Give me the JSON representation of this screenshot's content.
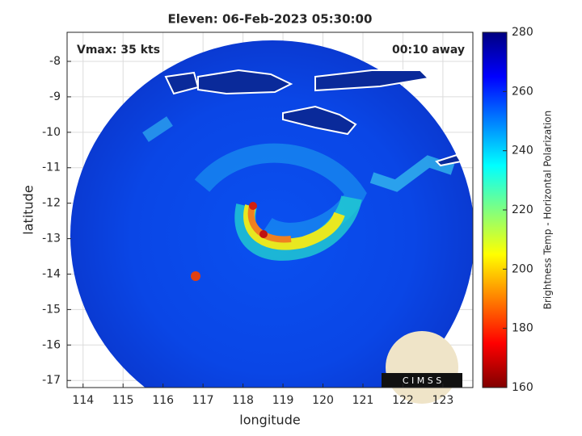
{
  "chart_data": {
    "type": "image",
    "title": "Eleven: 06-Feb-2023 05:30:00",
    "xlabel": "longitude",
    "ylabel": "latitude",
    "xlim": [
      113.6,
      123.75
    ],
    "xticks": [
      114,
      115,
      116,
      117,
      118,
      119,
      120,
      121,
      122,
      123
    ],
    "ylim": [
      -17.2,
      -7.18
    ],
    "yticks": [
      -17,
      -16,
      -15,
      -14,
      -13,
      -12,
      -11,
      -10,
      -9,
      -8
    ],
    "grid": true,
    "annotations": [
      "Vmax: 35 kts",
      "00:10 away"
    ],
    "logo_text": "C I M S S",
    "colorbar": {
      "label": "Brightness Temp - Horizontal Polarization",
      "colormap": "jet",
      "lim": [
        160,
        280
      ],
      "ticks": [
        160,
        180,
        200,
        220,
        240,
        260,
        280
      ]
    }
  }
}
